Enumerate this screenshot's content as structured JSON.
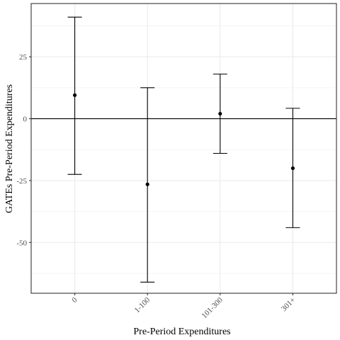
{
  "chart_data": {
    "type": "scatter",
    "subtype": "point-with-errorbars",
    "xlabel": "Pre-Period Expenditures",
    "ylabel": "GATEs Pre-Period Expenditures",
    "categories": [
      "0",
      "1-100",
      "101-300",
      "301+"
    ],
    "points": [
      {
        "category": "0",
        "estimate": 9.5,
        "lower": -22.5,
        "upper": 41
      },
      {
        "category": "1-100",
        "estimate": -26.5,
        "lower": -66,
        "upper": 12.5
      },
      {
        "category": "101-300",
        "estimate": 2,
        "lower": -14,
        "upper": 18
      },
      {
        "category": "301+",
        "estimate": -20,
        "lower": -44,
        "upper": 4.2
      }
    ],
    "ylim": [
      -70.5,
      46.5
    ],
    "yticks": [
      -50,
      -25,
      0,
      25
    ],
    "ytick_labels": [
      "-50",
      "-25",
      "0",
      "25"
    ],
    "xtick_rotation": "45deg",
    "reference_line": 0,
    "grid": true,
    "theme": "bw",
    "colors": {
      "grid": "#ebebeb",
      "panel_border": "#333333",
      "marks": "#000000",
      "tick_text": "#4d4d4d"
    }
  }
}
